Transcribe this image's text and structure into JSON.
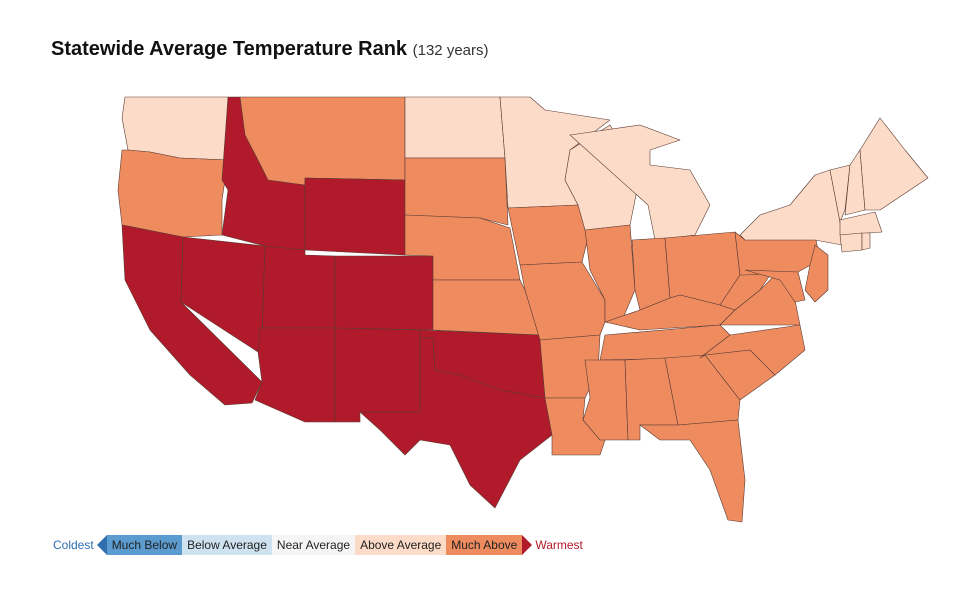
{
  "title": "Statewide Average Temperature Rank",
  "subtitle": "(132 years)",
  "legend": {
    "coldest": "Coldest",
    "warmest": "Warmest",
    "coldest_color": "#2f6fb0",
    "warmest_color": "#b01a2a",
    "items": [
      {
        "label": "Much Below",
        "color": "#5b9bd0"
      },
      {
        "label": "Below Average",
        "color": "#cfe2f0"
      },
      {
        "label": "Near Average",
        "color": "#f5f5f5"
      },
      {
        "label": "Above Average",
        "color": "#fcdcc8"
      },
      {
        "label": "Much Above",
        "color": "#ee8c60"
      }
    ]
  },
  "category_colors": {
    "Warmest": "#b01a2a",
    "Much Above": "#ee8c60",
    "Above Average": "#fcdcc8"
  },
  "states": [
    {
      "state": "WA",
      "category": "Above Average"
    },
    {
      "state": "OR",
      "category": "Much Above"
    },
    {
      "state": "CA",
      "category": "Warmest"
    },
    {
      "state": "NV",
      "category": "Warmest"
    },
    {
      "state": "ID",
      "category": "Warmest"
    },
    {
      "state": "MT",
      "category": "Much Above"
    },
    {
      "state": "WY",
      "category": "Warmest"
    },
    {
      "state": "UT",
      "category": "Warmest"
    },
    {
      "state": "CO",
      "category": "Warmest"
    },
    {
      "state": "AZ",
      "category": "Warmest"
    },
    {
      "state": "NM",
      "category": "Warmest"
    },
    {
      "state": "OK",
      "category": "Warmest"
    },
    {
      "state": "TX",
      "category": "Warmest"
    },
    {
      "state": "ND",
      "category": "Above Average"
    },
    {
      "state": "SD",
      "category": "Much Above"
    },
    {
      "state": "NE",
      "category": "Much Above"
    },
    {
      "state": "KS",
      "category": "Much Above"
    },
    {
      "state": "MN",
      "category": "Above Average"
    },
    {
      "state": "IA",
      "category": "Much Above"
    },
    {
      "state": "MO",
      "category": "Much Above"
    },
    {
      "state": "AR",
      "category": "Much Above"
    },
    {
      "state": "LA",
      "category": "Much Above"
    },
    {
      "state": "WI",
      "category": "Above Average"
    },
    {
      "state": "IL",
      "category": "Much Above"
    },
    {
      "state": "MI",
      "category": "Above Average"
    },
    {
      "state": "IN",
      "category": "Much Above"
    },
    {
      "state": "OH",
      "category": "Much Above"
    },
    {
      "state": "KY",
      "category": "Much Above"
    },
    {
      "state": "TN",
      "category": "Much Above"
    },
    {
      "state": "MS",
      "category": "Much Above"
    },
    {
      "state": "AL",
      "category": "Much Above"
    },
    {
      "state": "GA",
      "category": "Much Above"
    },
    {
      "state": "FL",
      "category": "Much Above"
    },
    {
      "state": "SC",
      "category": "Much Above"
    },
    {
      "state": "NC",
      "category": "Much Above"
    },
    {
      "state": "VA",
      "category": "Much Above"
    },
    {
      "state": "WV",
      "category": "Much Above"
    },
    {
      "state": "PA",
      "category": "Much Above"
    },
    {
      "state": "MD",
      "category": "Much Above"
    },
    {
      "state": "NJ",
      "category": "Much Above"
    },
    {
      "state": "NY",
      "category": "Above Average"
    },
    {
      "state": "VT",
      "category": "Above Average"
    },
    {
      "state": "NH",
      "category": "Above Average"
    },
    {
      "state": "ME",
      "category": "Above Average"
    },
    {
      "state": "MA",
      "category": "Above Average"
    },
    {
      "state": "CT",
      "category": "Above Average"
    },
    {
      "state": "RI",
      "category": "Above Average"
    }
  ]
}
